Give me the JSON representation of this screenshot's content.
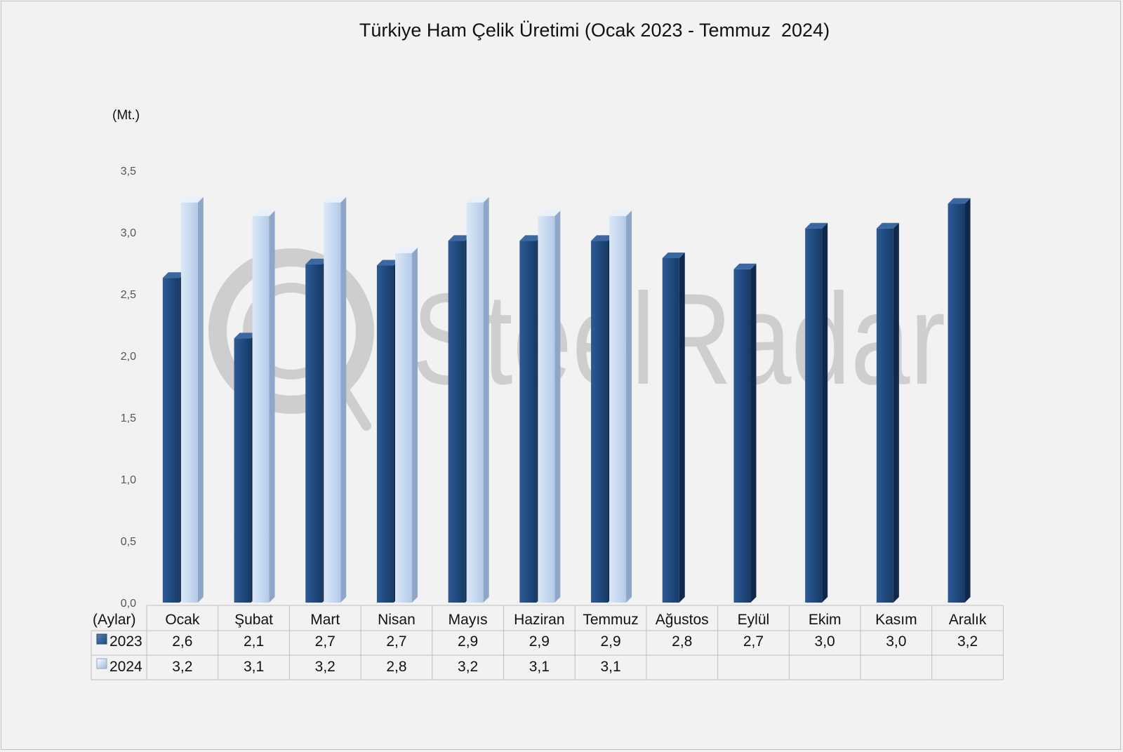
{
  "chart_data": {
    "type": "bar",
    "title": "Türkiye Ham Çelik Üretimi (Ocak 2023 - Temmuz  2024)",
    "unit_label": "(Mt.)",
    "category_header": "(Aylar)",
    "categories": [
      "Ocak",
      "Şubat",
      "Mart",
      "Nisan",
      "Mayıs",
      "Haziran",
      "Temmuz",
      "Ağustos",
      "Eylül",
      "Ekim",
      "Kasım",
      "Aralık"
    ],
    "series": [
      {
        "name": "2023",
        "color": "#1f497d",
        "values": [
          2.63,
          2.14,
          2.74,
          2.73,
          2.93,
          2.93,
          2.93,
          2.79,
          2.7,
          3.03,
          3.03,
          3.23
        ],
        "labels": [
          "2,6",
          "2,1",
          "2,7",
          "2,7",
          "2,9",
          "2,9",
          "2,9",
          "2,8",
          "2,7",
          "3,0",
          "3,0",
          "3,2"
        ]
      },
      {
        "name": "2024",
        "color": "#c6d9f1",
        "values": [
          3.24,
          3.13,
          3.24,
          2.83,
          3.24,
          3.13,
          3.13,
          null,
          null,
          null,
          null,
          null
        ],
        "labels": [
          "3,2",
          "3,1",
          "3,2",
          "2,8",
          "3,2",
          "3,1",
          "3,1",
          "",
          "",
          "",
          "",
          ""
        ]
      }
    ],
    "ylim": [
      0,
      3.5
    ],
    "yticks": [
      0,
      0.5,
      1.0,
      1.5,
      2.0,
      2.5,
      3.0,
      3.5
    ],
    "ytick_labels": [
      "0,0",
      "0,5",
      "1,0",
      "1,5",
      "2,0",
      "2,5",
      "3,0",
      "3,5"
    ],
    "grid": false,
    "legend": "data-table"
  },
  "watermark": {
    "text": "SteelRadar"
  }
}
